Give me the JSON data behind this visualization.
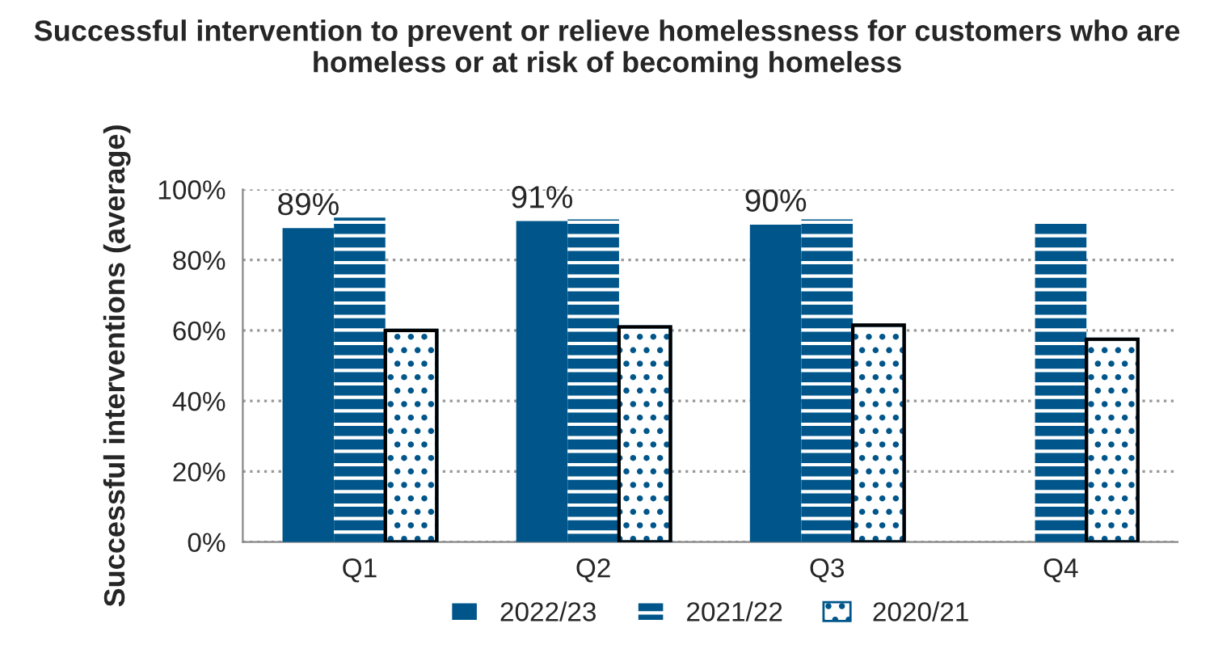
{
  "chart_data": {
    "type": "bar",
    "title": "Successful intervention to prevent or relieve homelessness for customers who are homeless or at risk of becoming homeless",
    "ylabel": "Successful interventions (average)",
    "categories": [
      "Q1",
      "Q2",
      "Q3",
      "Q4"
    ],
    "series": [
      {
        "name": "2022/23",
        "color": "#00568a",
        "values": [
          89,
          91,
          90,
          null
        ],
        "value_labels": [
          "89%",
          "91%",
          "90%",
          null
        ]
      },
      {
        "name": "2021/22",
        "color": "#00568a",
        "values": [
          92,
          91.5,
          91.5,
          91
        ]
      },
      {
        "name": "2020/21",
        "color": "#00568a",
        "values": [
          60,
          61,
          61.5,
          57.5
        ]
      }
    ],
    "ylim": [
      0,
      100
    ],
    "yticks": [
      {
        "value": 0,
        "label": "0%"
      },
      {
        "value": 20,
        "label": "20%"
      },
      {
        "value": 40,
        "label": "40%"
      },
      {
        "value": 60,
        "label": "60%"
      },
      {
        "value": 80,
        "label": "80%"
      },
      {
        "value": 100,
        "label": "100%"
      }
    ],
    "grid": "y",
    "legend": "bottom"
  }
}
